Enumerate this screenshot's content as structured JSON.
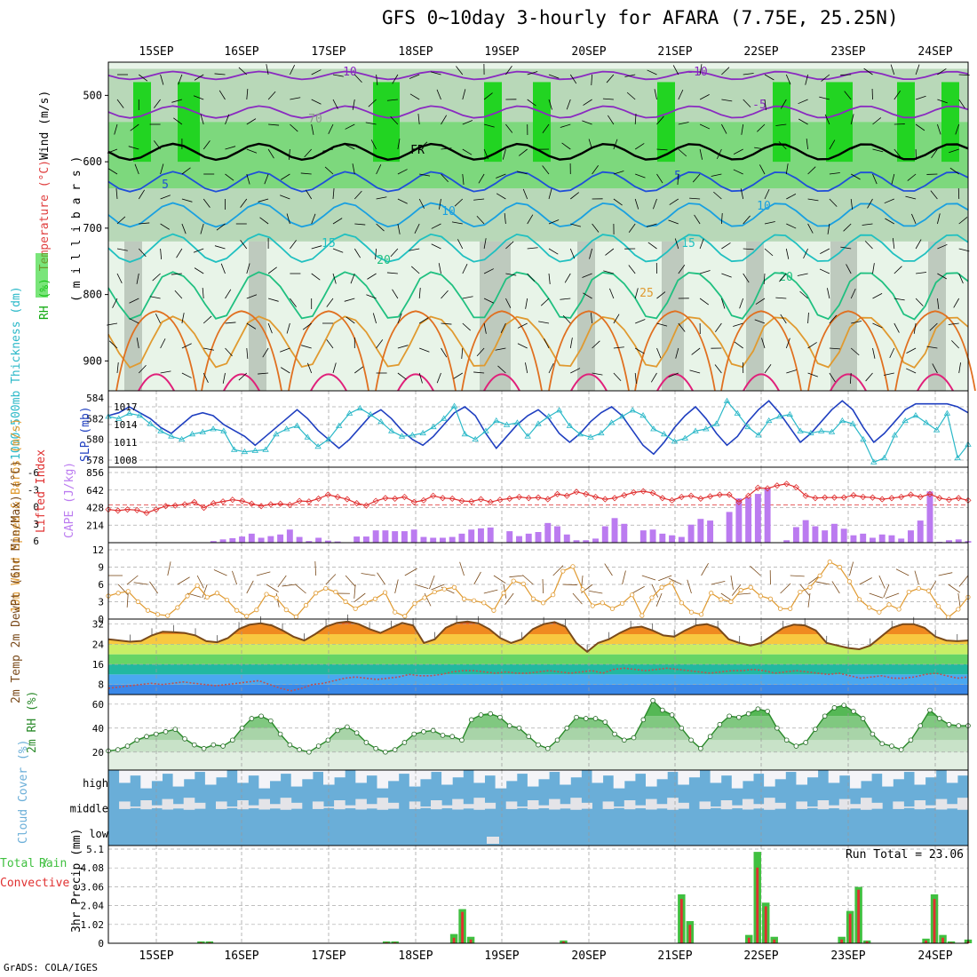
{
  "title": "GFS 0~10day 3-hourly for AFARA (7.75E, 25.25N)",
  "credit": "GrADS: COLA/IGES",
  "date_labels": [
    "15SEP",
    "16SEP",
    "17SEP",
    "18SEP",
    "19SEP",
    "20SEP",
    "21SEP",
    "22SEP",
    "23SEP",
    "24SEP"
  ],
  "colors": {
    "rh_light": "#e8f4e8",
    "rh_mid": "#b8d8b8",
    "rh_gray": "#9aa89a",
    "rh_green": "#7dd87d",
    "rh_bright": "#22d422",
    "slp": "#1f3fc0",
    "thickness": "#2ab8c8",
    "li": "#e03030",
    "cape": "#bb7bf0",
    "wind_speed": "#e09a30",
    "barb": "#7a4a1a",
    "temp": "#7a4a1a",
    "rh2m": "#2a8a2a",
    "cloud": "#6aaed8",
    "precip_total": "#40c040",
    "precip_conv": "#e03030"
  },
  "chart_data": [
    {
      "type": "heatmap",
      "name_parts": [
        "RH (%)",
        "Temperature (°C)",
        "Wind (m/s)"
      ],
      "ylabel": "( m i l l i b a r s )",
      "yticks": [
        500,
        600,
        700,
        800,
        900
      ],
      "contour_labels": [
        "-10",
        "-5",
        "FR",
        "5",
        "10",
        "15",
        "20",
        "25",
        "70"
      ],
      "temperature_levels_approx": {
        "-10": 470,
        "-5": 525,
        "0": 585,
        "5": 630,
        "10": 680,
        "15": 730,
        "20": 790,
        "25": 860
      }
    },
    {
      "type": "line",
      "ylabel_left": "1000~500mb Thickness (dm)",
      "ylabel_right": "SLP (mb)",
      "ticks_left": [
        578,
        580,
        582,
        584
      ],
      "ticks_right": [
        1008,
        1011,
        1014,
        1017
      ],
      "series": [
        {
          "name": "SLP (mb)",
          "values": [
            1015.5,
            1016,
            1017,
            1016,
            1015,
            1013.5,
            1012.5,
            1014,
            1015.5,
            1016,
            1015.5,
            1014,
            1013,
            1012,
            1010.5,
            1012,
            1013.5,
            1015,
            1016.5,
            1015,
            1013,
            1011.5,
            1010,
            1011.5,
            1013.5,
            1015.5,
            1016.5,
            1015,
            1013,
            1011.5,
            1010.5,
            1012,
            1014,
            1016,
            1017,
            1015.5,
            1012.5,
            1010,
            1012,
            1014,
            1015.5,
            1016.5,
            1015,
            1012.5,
            1011,
            1012.5,
            1014.5,
            1016,
            1017,
            1015.5,
            1013,
            1010.5,
            1009,
            1011,
            1013.5,
            1015.5,
            1017,
            1015,
            1012.5,
            1010.5,
            1012,
            1014.5,
            1016.5,
            1018,
            1016,
            1013.5,
            1011,
            1012.5,
            1014.5,
            1016.5,
            1018,
            1016.5,
            1013.5,
            1011,
            1012.5,
            1014.5,
            1016.5,
            1017.5,
            1017.5,
            1017.5,
            1017.5,
            1017,
            1016
          ]
        },
        {
          "name": "1000~500mb Thickness (dm)",
          "values": [
            582.2,
            582,
            582.5,
            582.3,
            581.5,
            580.8,
            580.3,
            580,
            580.5,
            580.7,
            581,
            580.8,
            579,
            578.8,
            578.9,
            579,
            580.5,
            581,
            581.3,
            580.2,
            579.3,
            580,
            581.3,
            582.5,
            583,
            582.4,
            581.7,
            580.8,
            580.3,
            580.4,
            580.6,
            581.2,
            582,
            583.2,
            580.5,
            580,
            580.8,
            581.8,
            581.4,
            581.6,
            580.3,
            581.5,
            582.2,
            582.8,
            581.3,
            580.5,
            580.2,
            580.6,
            581.6,
            582.2,
            582.8,
            582.3,
            581,
            580.5,
            579.8,
            580.1,
            580.8,
            581,
            581.5,
            583.7,
            582.5,
            581.2,
            580.4,
            581.8,
            582.2,
            582.4,
            580.8,
            580.6,
            580.8,
            580.7,
            581.8,
            581.5,
            580,
            577.8,
            578.2,
            580.4,
            581.8,
            582.3,
            581.6,
            580.9,
            582.5,
            578.2,
            579.5
          ]
        }
      ]
    },
    {
      "type": "bar",
      "ylabel_left": "Lifted Index",
      "ylabel_right": "CAPE (J/kg)",
      "ticks_left": [
        "-6",
        "-3",
        "0",
        "3",
        "6"
      ],
      "ticks_right": [
        "856",
        "642",
        "428",
        "214"
      ],
      "series": [
        {
          "name": "CAPE (J/kg)",
          "values": [
            0,
            0,
            0,
            0,
            0,
            0,
            0,
            0,
            0,
            0,
            5,
            20,
            40,
            55,
            75,
            110,
            60,
            80,
            100,
            160,
            70,
            20,
            60,
            25,
            15,
            0,
            75,
            75,
            150,
            150,
            140,
            140,
            160,
            70,
            60,
            60,
            70,
            110,
            160,
            175,
            185,
            0,
            140,
            80,
            110,
            130,
            240,
            200,
            100,
            30,
            30,
            50,
            200,
            300,
            230,
            0,
            150,
            160,
            110,
            90,
            70,
            220,
            290,
            270,
            0,
            375,
            540,
            555,
            595,
            665,
            0,
            30,
            190,
            275,
            200,
            150,
            230,
            170,
            90,
            110,
            60,
            100,
            90,
            50,
            150,
            270,
            625,
            10,
            30,
            40,
            20
          ]
        },
        {
          "name": "Lifted Index",
          "values": [
            0.8,
            1,
            0.8,
            0.9,
            1.4,
            0.8,
            0.2,
            0.1,
            -0.1,
            -0.5,
            0.5,
            -0.3,
            -0.6,
            -0.9,
            -0.7,
            -0.2,
            0.2,
            -0.1,
            -0.2,
            0,
            -0.7,
            -0.6,
            -1.1,
            -1.8,
            -1.4,
            -1,
            -0.3,
            0.1,
            -0.7,
            -1.2,
            -1.1,
            -1.4,
            -0.5,
            -0.8,
            -1.6,
            -1.2,
            -1.1,
            -0.7,
            -0.6,
            -1,
            -0.5,
            -0.9,
            -1.1,
            -1.4,
            -1.2,
            -1.3,
            -1,
            -1.9,
            -1.6,
            -2.3,
            -1.9,
            -1.4,
            -1,
            -1.2,
            -1.7,
            -2.2,
            -2.4,
            -2.1,
            -1.2,
            -0.8,
            -1.4,
            -1.6,
            -1.1,
            -1.5,
            -1.8,
            -1.8,
            -0.5,
            -1.6,
            -3,
            -2.9,
            -3.4,
            -3.7,
            -3.1,
            -1.6,
            -1.2,
            -1.3,
            -1.3,
            -1.3,
            -1.7,
            -1.4,
            -1.3,
            -1,
            -1.2,
            -1.4,
            -1.8,
            -1.4,
            -1.9,
            -1.2,
            -0.9,
            -1.2,
            -0.8
          ]
        }
      ]
    },
    {
      "type": "line",
      "ylabel": "10m Wind Speed & Barbs (m/s)",
      "yticks": [
        0,
        3,
        6,
        9,
        12
      ],
      "series": [
        {
          "name": "10m Wind Speed",
          "values": [
            4,
            4.5,
            4.8,
            3,
            1.5,
            0.8,
            0.6,
            2,
            4,
            5.8,
            3.8,
            4.5,
            3.3,
            1.5,
            0.5,
            1.6,
            4.3,
            3.7,
            1.6,
            0.4,
            2.4,
            4.5,
            5.3,
            4.7,
            3,
            1.8,
            2.8,
            3.5,
            4.6,
            1.2,
            0.5,
            2.7,
            3.7,
            4.7,
            5.2,
            5.5,
            3.5,
            3.2,
            2.8,
            1.5,
            4.5,
            6.6,
            6.1,
            3.5,
            2.8,
            4.2,
            8.3,
            9.1,
            5.1,
            2.3,
            2.8,
            1.8,
            2.7,
            4.2,
            0.6,
            3.7,
            5.5,
            6.3,
            2.8,
            1.2,
            0.8,
            4.5,
            3.4,
            3,
            5,
            5.5,
            4,
            3.5,
            1.8,
            1.8,
            4.7,
            5.5,
            7.5,
            9.9,
            9,
            6.5,
            3.4,
            2,
            1.2,
            2.5,
            1.7,
            4.7,
            5.3,
            4.9,
            2.2,
            0.3,
            1.7,
            3.8
          ]
        }
      ]
    },
    {
      "type": "area",
      "ylabel": "2m Temp 2m DewPt (6hr Min/Max) (°C)",
      "yticks": [
        8,
        16,
        24,
        32
      ],
      "series": [
        {
          "name": "2m Temp",
          "values": [
            26,
            25.5,
            25,
            25.3,
            27.5,
            29,
            28.8,
            28.5,
            27.5,
            25.2,
            24.8,
            26.5,
            30,
            31.8,
            32.3,
            31.5,
            29.5,
            27,
            25.5,
            28,
            31,
            32.5,
            33,
            32,
            30,
            28.5,
            30.5,
            32.5,
            31.5,
            24.5,
            26,
            30.5,
            32.5,
            33,
            32.3,
            30,
            26.5,
            24.5,
            26,
            30,
            32,
            32.8,
            31,
            24.5,
            21,
            24.5,
            26,
            28.5,
            30.5,
            31,
            29.5,
            27.5,
            27,
            29.5,
            31.5,
            32,
            30.5,
            26,
            24.5,
            23.5,
            24.5,
            27.5,
            30.5,
            31.8,
            31.5,
            29.5,
            24.5,
            23.5,
            22.5,
            22,
            23.5,
            27,
            30.5,
            32,
            32,
            30.5,
            27,
            25.5,
            25.2,
            25.5
          ]
        },
        {
          "name": "2m DewPt",
          "values": [
            6.5,
            7,
            7.5,
            8,
            8.5,
            8,
            8.5,
            9,
            8.5,
            8,
            7.5,
            8,
            8.5,
            9,
            9.5,
            8,
            6.5,
            5.5,
            6.5,
            8,
            8.5,
            9.5,
            10.5,
            11,
            10.5,
            10,
            10.5,
            11,
            12,
            11.5,
            11.5,
            12,
            13,
            13.5,
            13.5,
            13,
            12.5,
            13,
            12.5,
            12.5,
            13,
            13.5,
            13,
            12.5,
            13,
            13.5,
            12.5,
            14,
            14.5,
            14,
            13.5,
            14,
            14.5,
            14,
            13.5,
            13,
            12.5,
            13,
            13.5,
            13.5,
            14,
            13.5,
            12.5,
            13,
            13.5,
            13,
            12.5,
            12,
            12.5,
            11.5,
            10.5,
            11,
            11.5,
            10.5,
            10.5,
            11,
            12,
            12.5,
            11.5,
            10.5,
            11
          ]
        }
      ]
    },
    {
      "type": "area",
      "ylabel": "2m RH (%)",
      "yticks": [
        20,
        40,
        60
      ],
      "series": [
        {
          "name": "2m RH",
          "values": [
            21,
            22,
            25,
            30,
            33,
            35,
            37,
            39,
            31,
            26,
            23,
            26,
            25,
            30,
            40,
            48,
            50,
            46,
            35,
            26,
            22,
            20,
            25,
            30,
            38,
            41,
            36,
            28,
            23,
            20,
            22,
            28,
            35,
            37,
            38,
            34,
            33,
            30,
            47,
            51,
            52,
            49,
            42,
            40,
            33,
            26,
            23,
            30,
            40,
            49,
            48,
            48,
            45,
            35,
            30,
            32,
            47,
            63,
            55,
            51,
            40,
            30,
            23,
            33,
            43,
            50,
            49,
            52,
            56,
            54,
            40,
            30,
            25,
            28,
            39,
            50,
            57,
            59,
            54,
            48,
            35,
            27,
            25,
            22,
            30,
            42,
            55,
            48,
            43,
            42,
            42
          ]
        }
      ]
    },
    {
      "type": "heatmap",
      "ylabel": "Cloud Cover (%)",
      "ytick_labels": [
        "high",
        "middle",
        "low"
      ]
    },
    {
      "type": "bar",
      "ylabel_left": "Total / Rain Convective",
      "ylabel": "3hr Precip (mm)",
      "yticks": [
        "0",
        "1.02",
        "2.04",
        "3.06",
        "4.08",
        "5.1"
      ],
      "annotation": "Run Total = 23.06",
      "series": [
        {
          "name": "Total",
          "values": [
            0,
            0,
            0,
            0,
            0,
            0,
            0,
            0,
            0,
            0,
            0,
            0.1,
            0.1,
            0,
            0,
            0,
            0,
            0,
            0,
            0,
            0,
            0,
            0,
            0,
            0,
            0,
            0,
            0,
            0,
            0,
            0,
            0,
            0,
            0.1,
            0.1,
            0,
            0,
            0,
            0,
            0,
            0,
            0.5,
            1.85,
            0.35,
            0,
            0,
            0,
            0,
            0,
            0,
            0,
            0,
            0,
            0,
            0.15,
            0,
            0,
            0,
            0,
            0,
            0,
            0,
            0,
            0,
            0,
            0,
            0,
            0,
            2.65,
            1.2,
            0,
            0,
            0,
            0,
            0,
            0,
            0.45,
            4.95,
            2.2,
            0.35,
            0,
            0,
            0,
            0,
            0,
            0,
            0,
            0.35,
            1.75,
            3.05,
            0.15,
            0,
            0,
            0,
            0,
            0,
            0,
            0.25,
            2.65,
            0.45,
            0.1,
            0,
            0.2
          ]
        },
        {
          "name": "Convective",
          "values": [
            0,
            0,
            0,
            0,
            0,
            0,
            0,
            0,
            0,
            0,
            0,
            0.05,
            0.05,
            0,
            0,
            0,
            0,
            0,
            0,
            0,
            0,
            0,
            0,
            0,
            0,
            0,
            0,
            0,
            0,
            0,
            0,
            0,
            0,
            0.05,
            0.05,
            0,
            0,
            0,
            0,
            0,
            0,
            0.3,
            1.7,
            0.2,
            0,
            0,
            0,
            0,
            0,
            0,
            0,
            0,
            0,
            0,
            0.1,
            0,
            0,
            0,
            0,
            0,
            0,
            0,
            0,
            0,
            0,
            0,
            0,
            0,
            2.4,
            1,
            0,
            0,
            0,
            0,
            0,
            0,
            0.3,
            4.1,
            2,
            0.2,
            0,
            0,
            0,
            0,
            0,
            0,
            0,
            0.2,
            1.6,
            2.9,
            0.1,
            0,
            0,
            0,
            0,
            0,
            0,
            0.15,
            2.4,
            0.3,
            0.05,
            0,
            0.1
          ]
        }
      ]
    }
  ]
}
